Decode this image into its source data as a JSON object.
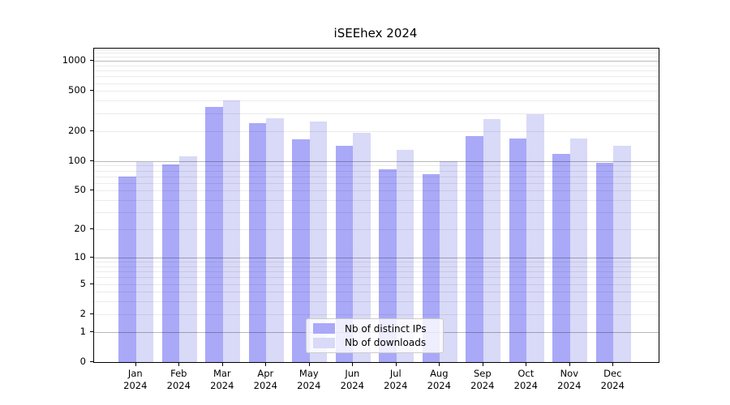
{
  "title": "iSEEhex 2024",
  "legend": {
    "items": [
      {
        "label": "Nb of distinct IPs"
      },
      {
        "label": "Nb of downloads"
      }
    ]
  },
  "colors": {
    "distinct_ips": "#a9a9f8",
    "downloads": "#d9d9f8",
    "major_grid": "rgba(0,0,0,0.28)",
    "minor_grid": "rgba(0,0,0,0.08)",
    "spine": "#000000",
    "background": "#ffffff"
  },
  "y_axis": {
    "tick_values": [
      0,
      1,
      2,
      5,
      10,
      20,
      50,
      100,
      200,
      500,
      1000
    ],
    "tick_labels": [
      "0",
      "1",
      "2",
      "5",
      "10",
      "20",
      "50",
      "100",
      "200",
      "500",
      "1000"
    ],
    "major_grid_values": [
      1,
      10,
      100,
      1000
    ],
    "minor_grid_values": [
      2,
      3,
      4,
      5,
      6,
      7,
      8,
      9,
      20,
      30,
      40,
      50,
      60,
      70,
      80,
      90,
      200,
      300,
      400,
      500,
      600,
      700,
      800,
      900,
      1100,
      1200,
      1300
    ]
  },
  "x_axis": {
    "months": [
      "Jan",
      "Feb",
      "Mar",
      "Apr",
      "May",
      "Jun",
      "Jul",
      "Aug",
      "Sep",
      "Oct",
      "Nov",
      "Dec"
    ],
    "year": "2024"
  },
  "chart_data": {
    "type": "bar",
    "title": "iSEEhex 2024",
    "categories": [
      "Jan 2024",
      "Feb 2024",
      "Mar 2024",
      "Apr 2024",
      "May 2024",
      "Jun 2024",
      "Jul 2024",
      "Aug 2024",
      "Sep 2024",
      "Oct 2024",
      "Nov 2024",
      "Dec 2024"
    ],
    "series": [
      {
        "name": "Nb of distinct IPs",
        "color": "#a9a9f8",
        "values": [
          70,
          92,
          350,
          238,
          165,
          143,
          83,
          74,
          176,
          169,
          117,
          96
        ]
      },
      {
        "name": "Nb of downloads",
        "color": "#d9d9f8",
        "values": [
          97,
          111,
          400,
          270,
          250,
          190,
          130,
          100,
          265,
          295,
          169,
          141
        ]
      }
    ],
    "yscale": "log1p",
    "ylim": [
      0,
      1300
    ],
    "yticks": [
      0,
      1,
      2,
      5,
      10,
      20,
      50,
      100,
      200,
      500,
      1000
    ],
    "grid": true,
    "legend_position": "lower-center-inside",
    "xlabel": "",
    "ylabel": ""
  }
}
